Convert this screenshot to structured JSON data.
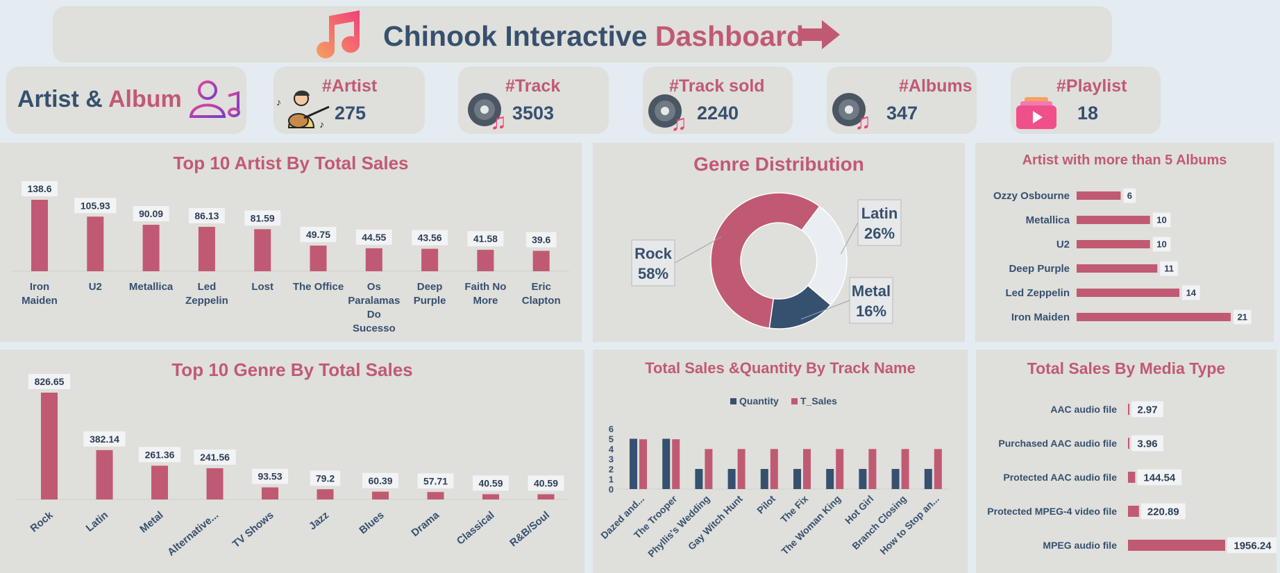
{
  "header": {
    "title_part1": "Chinook Interactive",
    "title_part2": "Dashboard"
  },
  "section": {
    "part1": "Artist &",
    "part2": "Album"
  },
  "kpis": [
    {
      "label": "#Artist",
      "value": "275"
    },
    {
      "label": "#Track",
      "value": "3503"
    },
    {
      "label": "#Track sold",
      "value": "2240"
    },
    {
      "label": "#Albums",
      "value": "347"
    },
    {
      "label": "#Playlist",
      "value": "18"
    }
  ],
  "colors": {
    "navy": "#36506f",
    "rose": "#c05a72",
    "panel": "#dfdfdb",
    "background": "#e4ebf1",
    "pie_light": "#eaedf2"
  },
  "chart_data": [
    {
      "id": "top-artists",
      "type": "bar",
      "title": "Top 10 Artist By Total Sales",
      "categories": [
        "Iron Maiden",
        "U2",
        "Metallica",
        "Led Zeppelin",
        "Lost",
        "The Office",
        "Os Paralamas Do Sucesso",
        "Deep Purple",
        "Faith No More",
        "Eric Clapton"
      ],
      "values": [
        138.6,
        105.93,
        90.09,
        86.13,
        81.59,
        49.75,
        44.55,
        43.56,
        41.58,
        39.6
      ]
    },
    {
      "id": "genre-distribution",
      "type": "pie",
      "title": "Genre Distribution",
      "categories": [
        "Rock",
        "Latin",
        "Metal"
      ],
      "values": [
        58,
        26,
        16
      ]
    },
    {
      "id": "artist-albums",
      "type": "bar",
      "title": "Artist with more than 5 Albums",
      "categories": [
        "Ozzy Osbourne",
        "Metallica",
        "U2",
        "Deep Purple",
        "Led Zeppelin",
        "Iron Maiden"
      ],
      "values": [
        6,
        10,
        10,
        11,
        14,
        21
      ]
    },
    {
      "id": "top-genres",
      "type": "bar",
      "title": "Top 10 Genre By Total Sales",
      "categories": [
        "Rock",
        "Latin",
        "Metal",
        "Alternative...",
        "TV Shows",
        "Jazz",
        "Blues",
        "Drama",
        "Classical",
        "R&B/Soul"
      ],
      "values": [
        826.65,
        382.14,
        261.36,
        241.56,
        93.53,
        79.2,
        60.39,
        57.71,
        40.59,
        40.59
      ]
    },
    {
      "id": "track-sales",
      "type": "bar",
      "title": "Total Sales &Quantity By Track Name",
      "categories": [
        "Dazed and...",
        "The Trooper",
        "Phyllis's Wedding",
        "Gay Witch Hunt",
        "Pilot",
        "The Fix",
        "The Woman King",
        "Hot Girl",
        "Branch Closing",
        "How to Stop an..."
      ],
      "ylim": [
        0,
        6
      ],
      "yticks": [
        "0",
        "1",
        "2",
        "3",
        "4",
        "5",
        "6"
      ],
      "series": [
        {
          "name": "Quantity",
          "values": [
            5,
            5,
            2,
            2,
            2,
            2,
            2,
            2,
            2,
            2
          ]
        },
        {
          "name": "T_Sales",
          "values": [
            4.95,
            4.95,
            3.98,
            3.98,
            3.98,
            3.98,
            3.98,
            3.98,
            3.98,
            3.98
          ]
        }
      ]
    },
    {
      "id": "media-type",
      "type": "bar",
      "title": "Total Sales By Media Type",
      "categories": [
        "AAC audio file",
        "Purchased AAC audio file",
        "Protected AAC audio file",
        "Protected MPEG-4 video file",
        "MPEG audio file"
      ],
      "values": [
        2.97,
        3.96,
        144.54,
        220.89,
        1956.24
      ]
    }
  ]
}
